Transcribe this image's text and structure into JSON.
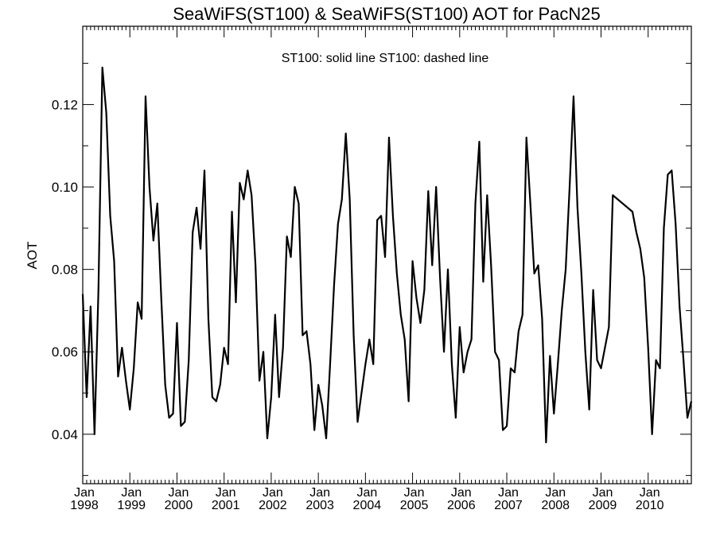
{
  "chart_data": {
    "type": "line",
    "title": "SeaWiFS(ST100) & SeaWiFS(ST100)  AOT for PacN25",
    "annotation": "ST100: solid line   ST100: dashed line",
    "ylabel": "AOT",
    "xlabel": "",
    "ylim": [
      0.028,
      0.139
    ],
    "xlim": [
      "1998-01",
      "2010-12"
    ],
    "y_ticks": [
      "0.04",
      "0.06",
      "0.08",
      "0.10",
      "0.12"
    ],
    "x_ticks": [
      {
        "month": "Jan",
        "year": "1998"
      },
      {
        "month": "Jan",
        "year": "1999"
      },
      {
        "month": "Jan",
        "year": "2000"
      },
      {
        "month": "Jan",
        "year": "2001"
      },
      {
        "month": "Jan",
        "year": "2002"
      },
      {
        "month": "Jan",
        "year": "2003"
      },
      {
        "month": "Jan",
        "year": "2004"
      },
      {
        "month": "Jan",
        "year": "2005"
      },
      {
        "month": "Jan",
        "year": "2006"
      },
      {
        "month": "Jan",
        "year": "2007"
      },
      {
        "month": "Jan",
        "year": "2008"
      },
      {
        "month": "Jan",
        "year": "2009"
      },
      {
        "month": "Jan",
        "year": "2010"
      }
    ],
    "grid": false,
    "series": [
      {
        "style": "solid",
        "color": "#000000",
        "x": [
          "1998-01",
          "1998-02",
          "1998-03",
          "1998-04",
          "1998-05",
          "1998-06",
          "1998-07",
          "1998-08",
          "1998-09",
          "1998-10",
          "1998-11",
          "1998-12",
          "1999-01",
          "1999-02",
          "1999-03",
          "1999-04",
          "1999-05",
          "1999-06",
          "1999-07",
          "1999-08",
          "1999-09",
          "1999-10",
          "1999-11",
          "1999-12",
          "2000-01",
          "2000-02",
          "2000-03",
          "2000-04",
          "2000-05",
          "2000-06",
          "2000-07",
          "2000-08",
          "2000-09",
          "2000-10",
          "2000-11",
          "2000-12",
          "2001-01",
          "2001-02",
          "2001-03",
          "2001-04",
          "2001-05",
          "2001-06",
          "2001-07",
          "2001-08",
          "2001-09",
          "2001-10",
          "2001-11",
          "2001-12",
          "2002-01",
          "2002-02",
          "2002-03",
          "2002-04",
          "2002-05",
          "2002-06",
          "2002-07",
          "2002-08",
          "2002-09",
          "2002-10",
          "2002-11",
          "2002-12",
          "2003-01",
          "2003-02",
          "2003-03",
          "2003-04",
          "2003-05",
          "2003-06",
          "2003-07",
          "2003-08",
          "2003-09",
          "2003-10",
          "2003-11",
          "2003-12",
          "2004-01",
          "2004-02",
          "2004-03",
          "2004-04",
          "2004-05",
          "2004-06",
          "2004-07",
          "2004-08",
          "2004-09",
          "2004-10",
          "2004-11",
          "2004-12",
          "2005-01",
          "2005-02",
          "2005-03",
          "2005-04",
          "2005-05",
          "2005-06",
          "2005-07",
          "2005-08",
          "2005-09",
          "2005-10",
          "2005-11",
          "2005-12",
          "2006-01",
          "2006-02",
          "2006-03",
          "2006-04",
          "2006-05",
          "2006-06",
          "2006-07",
          "2006-08",
          "2006-09",
          "2006-10",
          "2006-11",
          "2006-12",
          "2007-01",
          "2007-02",
          "2007-03",
          "2007-04",
          "2007-05",
          "2007-06",
          "2007-07",
          "2007-08",
          "2007-09",
          "2007-10",
          "2007-11",
          "2007-12",
          "2008-01",
          "2008-02",
          "2008-03",
          "2008-04",
          "2008-05",
          "2008-06",
          "2008-07",
          "2008-08",
          "2008-09",
          "2008-10",
          "2008-11",
          "2008-12",
          "2009-01",
          "2009-02",
          "2009-03",
          "2009-04",
          "2009-09",
          "2009-10",
          "2009-11",
          "2009-12",
          "2010-01",
          "2010-02",
          "2010-03",
          "2010-04",
          "2010-05",
          "2010-06",
          "2010-07",
          "2010-08",
          "2010-09",
          "2010-10",
          "2010-11",
          "2010-12"
        ],
        "y": [
          0.074,
          0.049,
          0.071,
          0.04,
          0.075,
          0.129,
          0.118,
          0.093,
          0.082,
          0.054,
          0.061,
          0.053,
          0.046,
          0.056,
          0.072,
          0.068,
          0.122,
          0.1,
          0.087,
          0.096,
          0.073,
          0.052,
          0.044,
          0.045,
          0.067,
          0.042,
          0.043,
          0.058,
          0.089,
          0.095,
          0.085,
          0.104,
          0.068,
          0.049,
          0.048,
          0.052,
          0.061,
          0.057,
          0.094,
          0.072,
          0.101,
          0.097,
          0.104,
          0.098,
          0.081,
          0.053,
          0.06,
          0.039,
          0.049,
          0.069,
          0.049,
          0.061,
          0.088,
          0.083,
          0.1,
          0.096,
          0.064,
          0.065,
          0.057,
          0.041,
          0.052,
          0.047,
          0.039,
          0.057,
          0.076,
          0.091,
          0.097,
          0.113,
          0.097,
          0.064,
          0.043,
          0.05,
          0.057,
          0.063,
          0.057,
          0.092,
          0.093,
          0.083,
          0.112,
          0.093,
          0.079,
          0.069,
          0.063,
          0.048,
          0.082,
          0.073,
          0.067,
          0.075,
          0.099,
          0.081,
          0.1,
          0.078,
          0.06,
          0.08,
          0.057,
          0.044,
          0.066,
          0.055,
          0.06,
          0.063,
          0.096,
          0.111,
          0.077,
          0.098,
          0.081,
          0.06,
          0.058,
          0.041,
          0.042,
          0.056,
          0.055,
          0.065,
          0.069,
          0.112,
          0.096,
          0.079,
          0.081,
          0.068,
          0.038,
          0.059,
          0.045,
          0.057,
          0.07,
          0.08,
          0.1,
          0.122,
          0.095,
          0.079,
          0.06,
          0.046,
          0.075,
          0.058,
          0.056,
          0.061,
          0.066,
          0.098,
          0.094,
          0.089,
          0.085,
          0.078,
          0.061,
          0.04,
          0.058,
          0.056,
          0.09,
          0.103,
          0.104,
          0.091,
          0.071,
          0.058,
          0.044,
          0.048
        ]
      }
    ]
  }
}
